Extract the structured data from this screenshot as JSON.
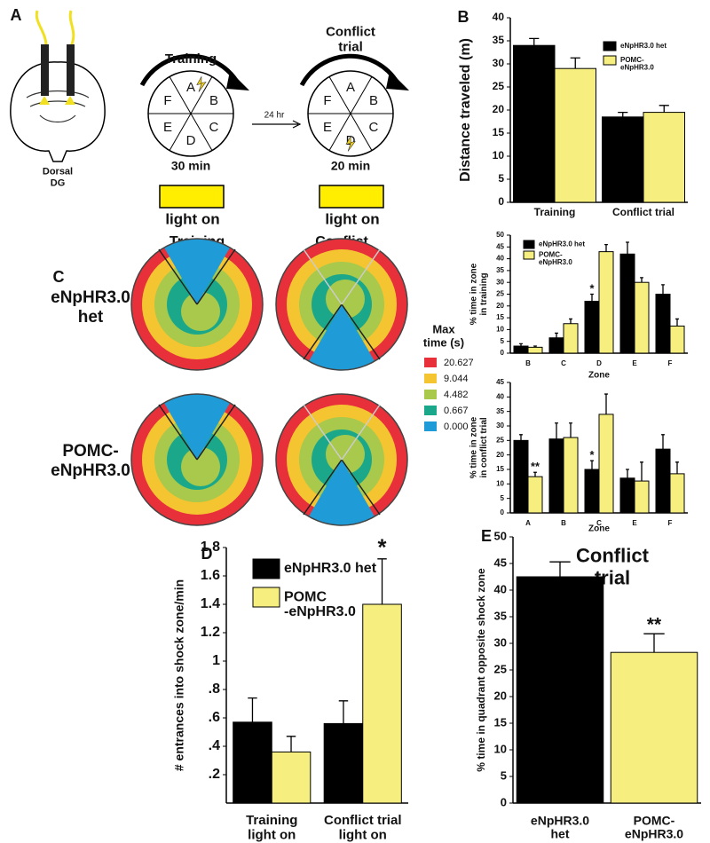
{
  "chart_data": [
    {
      "type": "bar",
      "panel": "B",
      "ylabel": "Distance traveled (m)",
      "categories": [
        "Training",
        "Conflict trial"
      ],
      "series": [
        {
          "name": "eNpHR3.0 het",
          "color": "#000000",
          "values": [
            34,
            18.5
          ],
          "errors": [
            1.5,
            1
          ]
        },
        {
          "name": "POMC-\neNpHR3.0",
          "color": "#f6ef80",
          "values": [
            29,
            19.5
          ],
          "errors": [
            2.3,
            1.5
          ]
        }
      ],
      "ylim": [
        0,
        40
      ],
      "yticks": [
        0,
        5,
        10,
        15,
        20,
        25,
        30,
        35,
        40
      ]
    },
    {
      "type": "bar",
      "ylabel": "% time in zone\nin training",
      "xlabel": "Zone",
      "categories": [
        "B",
        "C",
        "D",
        "E",
        "F"
      ],
      "series": [
        {
          "name": "eNpHR3.0 het",
          "color": "#000000",
          "values": [
            3,
            6.5,
            22,
            42,
            25
          ],
          "errors": [
            1,
            2,
            3,
            5,
            4
          ]
        },
        {
          "name": "POMC-\neNpHR3.0",
          "color": "#f6ef80",
          "values": [
            2.5,
            12.5,
            43,
            30,
            11.5
          ],
          "errors": [
            0.5,
            2,
            3,
            2,
            3
          ]
        }
      ],
      "annotations": [
        {
          "text": "*",
          "category": 2,
          "series": 0
        }
      ],
      "ylim": [
        0,
        50
      ],
      "yticks": [
        0,
        5,
        10,
        15,
        20,
        25,
        30,
        35,
        40,
        45,
        50
      ]
    },
    {
      "type": "bar",
      "ylabel": "% time in zone\nin conflict trial",
      "xlabel": "Zone",
      "categories": [
        "A",
        "B",
        "C",
        "E",
        "F"
      ],
      "series": [
        {
          "name": "eNpHR3.0 het",
          "color": "#000000",
          "values": [
            25,
            25.5,
            15,
            12,
            22
          ],
          "errors": [
            2,
            5.5,
            3,
            3,
            5
          ]
        },
        {
          "name": "POMC-eNpHR3.0",
          "color": "#f6ef80",
          "values": [
            12.5,
            26,
            34,
            11,
            13.5
          ],
          "errors": [
            1.5,
            5,
            7,
            6.5,
            4
          ]
        }
      ],
      "annotations": [
        {
          "text": "**",
          "category": 0,
          "series": 1
        },
        {
          "text": "*",
          "category": 2,
          "series": 0
        }
      ],
      "ylim": [
        0,
        45
      ],
      "yticks": [
        0,
        5,
        10,
        15,
        20,
        25,
        30,
        35,
        40,
        45
      ]
    },
    {
      "type": "bar",
      "panel": "D",
      "ylabel": "# entrances into shock zone/min",
      "categories": [
        "Training\nlight on",
        "Conflict trial\nlight on"
      ],
      "series": [
        {
          "name": "eNpHR3.0 het",
          "color": "#000000",
          "values": [
            0.57,
            0.56
          ],
          "errors": [
            0.17,
            0.16
          ]
        },
        {
          "name": "POMC\n-eNpHR3.0",
          "color": "#f6ef80",
          "values": [
            0.36,
            1.4
          ],
          "errors": [
            0.11,
            0.32
          ]
        }
      ],
      "annotations": [
        {
          "text": "*",
          "category": 1,
          "series": 1
        }
      ],
      "ylim": [
        0,
        1.8
      ],
      "yticks": [
        {
          "value": 0.2,
          "label": ".2"
        },
        {
          "value": 0.4,
          "label": ".4"
        },
        {
          "value": 0.6,
          "label": ".6"
        },
        {
          "value": 0.8,
          "label": ".8"
        },
        1,
        1.2,
        1.4,
        1.6,
        1.8
      ]
    },
    {
      "type": "bar",
      "panel": "E",
      "title": "Conflict\ntrial",
      "ylabel": "% time in quadrant opposite shock zone",
      "categories": [
        "eNpHR3.0\nhet",
        "POMC-\neNpHR3.0"
      ],
      "values": [
        42.5,
        28.3
      ],
      "errors": [
        2.8,
        3.5
      ],
      "colors": [
        "#000000",
        "#f6ef80"
      ],
      "annotations": [
        {
          "text": "**",
          "category": 1
        }
      ],
      "ylim": [
        0,
        50
      ],
      "yticks": [
        0,
        5,
        10,
        15,
        20,
        25,
        30,
        35,
        40,
        45,
        50
      ]
    }
  ],
  "panel_a": {
    "panel": "A",
    "region": "Dorsal\nDG",
    "training": "Training",
    "conflict": "Conflict\ntrial",
    "interval": "24 hr",
    "training_time": "30 min",
    "conflict_time": "20 min",
    "light": [
      "light on",
      "light on"
    ],
    "zones": [
      "A",
      "B",
      "C",
      "D",
      "E",
      "F"
    ]
  },
  "panel_c": {
    "panel": "C",
    "columns": [
      "Training",
      "Conflict"
    ],
    "rows": [
      "eNpHR3.0\nhet",
      "POMC-\neNpHR3.0"
    ],
    "legend_title": "Max\ntime (s)",
    "legend": [
      {
        "label": "20.627",
        "color": "#e8303a"
      },
      {
        "label": "9.044",
        "color": "#f5c431"
      },
      {
        "label": "4.482",
        "color": "#a8c94b"
      },
      {
        "label": "0.667",
        "color": "#1ba88a"
      },
      {
        "label": "0.000",
        "color": "#1f9bd7"
      }
    ]
  }
}
